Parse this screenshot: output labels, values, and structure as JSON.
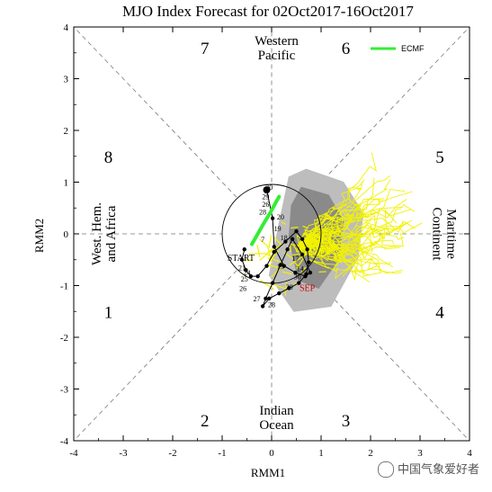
{
  "chart_data": {
    "type": "scatter",
    "title": "MJO Index Forecast for 02Oct2017-16Oct2017",
    "xlabel": "RMM1",
    "ylabel": "RMM2",
    "xlim": [
      -4,
      4
    ],
    "ylim": [
      -4,
      4
    ],
    "x_ticks": [
      -4,
      -3,
      -2,
      -1,
      0,
      1,
      2,
      3,
      4
    ],
    "y_ticks": [
      -4,
      -3,
      -2,
      -1,
      0,
      1,
      2,
      3,
      4
    ],
    "unit_circle_radius": 1,
    "phases": [
      {
        "number": "1",
        "x": -3.3,
        "y": -1.5
      },
      {
        "number": "2",
        "x": -1.35,
        "y": -3.6
      },
      {
        "number": "3",
        "x": 1.5,
        "y": -3.6
      },
      {
        "number": "4",
        "x": 3.4,
        "y": -1.5
      },
      {
        "number": "5",
        "x": 3.4,
        "y": 1.5
      },
      {
        "number": "6",
        "x": 1.5,
        "y": 3.6
      },
      {
        "number": "7",
        "x": -1.35,
        "y": 3.6
      },
      {
        "number": "8",
        "x": -3.3,
        "y": 1.5
      }
    ],
    "regions": [
      {
        "name": "western-pacific",
        "lines": [
          "Western",
          "Pacific"
        ],
        "x": 0.1,
        "y": 3.6,
        "rotate": 0
      },
      {
        "name": "indian-ocean",
        "lines": [
          "Indian",
          "Ocean"
        ],
        "x": 0.1,
        "y": -3.55,
        "rotate": 0
      },
      {
        "name": "west-hem-africa",
        "lines": [
          "West. Hem.",
          "and Africa"
        ],
        "x": -3.4,
        "y": 0,
        "rotate": -90
      },
      {
        "name": "maritime-continent",
        "lines": [
          "Maritime",
          "Continent"
        ],
        "x": 3.5,
        "y": 0,
        "rotate": 90
      }
    ],
    "legend": {
      "label": "ECMF",
      "color": "#33ee33",
      "position": "top-right"
    },
    "observed": {
      "x": [
        -0.55,
        -0.6,
        -0.52,
        -0.42,
        -0.28,
        -0.1,
        0.05,
        0.28,
        0.5,
        0.62,
        0.72,
        0.75,
        0.7,
        0.55,
        0.35,
        0.15,
        -0.05,
        -0.18,
        -0.12,
        0.02,
        0.18,
        0.32,
        0.42,
        0.62,
        0.78,
        0.68,
        0.48,
        0.25,
        0.05,
        0.02,
        -0.1
      ],
      "y": [
        -0.3,
        -0.5,
        -0.7,
        -0.82,
        -0.82,
        -0.62,
        -0.35,
        -0.15,
        0.05,
        -0.1,
        -0.3,
        -0.55,
        -0.78,
        -0.95,
        -1.05,
        -1.15,
        -1.25,
        -1.4,
        -1.25,
        -0.95,
        -0.6,
        -0.3,
        -0.1,
        -0.4,
        -0.75,
        -0.82,
        -0.75,
        -0.62,
        -0.25,
        0.3,
        0.85
      ],
      "day_labels": [
        {
          "text": "START",
          "x": -0.62,
          "y": -0.52,
          "color": "#000000"
        },
        {
          "text": "SEP",
          "x": 0.72,
          "y": -1.1,
          "color": "#cc0000"
        },
        {
          "text": "30",
          "x": -0.05,
          "y": 0.85,
          "color": "#000000"
        },
        {
          "text": "29",
          "x": -0.12,
          "y": 0.67,
          "color": "#000000"
        },
        {
          "text": "26",
          "x": -0.12,
          "y": 0.52,
          "color": "#000000"
        },
        {
          "text": "28",
          "x": -0.18,
          "y": 0.37,
          "color": "#000000"
        },
        {
          "text": "20",
          "x": 0.18,
          "y": 0.28,
          "color": "#000000"
        },
        {
          "text": "19",
          "x": 0.12,
          "y": 0.05,
          "color": "#000000"
        },
        {
          "text": "18",
          "x": 0.25,
          "y": -0.12,
          "color": "#000000"
        },
        {
          "text": "7",
          "x": -0.18,
          "y": -0.16,
          "color": "#000000"
        },
        {
          "text": "17",
          "x": 0.48,
          "y": -0.52,
          "color": "#000000"
        },
        {
          "text": "14",
          "x": 0.58,
          "y": -0.72,
          "color": "#000000"
        },
        {
          "text": "30",
          "x": 0.52,
          "y": -0.88,
          "color": "#000000"
        },
        {
          "text": "13",
          "x": 0.18,
          "y": -0.68,
          "color": "#000000"
        },
        {
          "text": "24",
          "x": -0.5,
          "y": -0.8,
          "color": "#000000"
        },
        {
          "text": "21",
          "x": -0.6,
          "y": -0.7,
          "color": "#000000"
        },
        {
          "text": "25",
          "x": -0.55,
          "y": -0.92,
          "color": "#000000"
        },
        {
          "text": "26",
          "x": -0.58,
          "y": -1.1,
          "color": "#000000"
        },
        {
          "text": "27",
          "x": -0.3,
          "y": -1.3,
          "color": "#000000"
        },
        {
          "text": "28",
          "x": 0.0,
          "y": -1.42,
          "color": "#000000"
        },
        {
          "text": "29",
          "x": 0.36,
          "y": -1.08,
          "color": "#000000"
        }
      ]
    },
    "ensemble_mean": {
      "color": "#33ee33",
      "x": [
        -0.4,
        -0.28,
        -0.15,
        -0.02,
        0.08,
        0.15
      ],
      "y": [
        -0.2,
        0.0,
        0.22,
        0.42,
        0.6,
        0.72
      ]
    },
    "ensemble_members": {
      "color": "#f2f200",
      "count": 50,
      "start_x": 0.55,
      "start_y": -0.2,
      "end_center_x": 1.6,
      "end_center_y": 0.2
    },
    "spread_shading": [
      {
        "name": "spread-outer",
        "color": "#bdbdbd",
        "points": [
          [
            0.35,
            1.1
          ],
          [
            0.7,
            1.25
          ],
          [
            1.45,
            1.0
          ],
          [
            1.85,
            0.4
          ],
          [
            1.75,
            -0.45
          ],
          [
            1.2,
            -1.4
          ],
          [
            0.45,
            -1.5
          ],
          [
            -0.05,
            -0.8
          ],
          [
            0.15,
            0.2
          ]
        ]
      },
      {
        "name": "spread-inner",
        "color": "#8a8a8a",
        "points": [
          [
            0.6,
            0.9
          ],
          [
            1.15,
            0.75
          ],
          [
            1.45,
            0.25
          ],
          [
            1.35,
            -0.5
          ],
          [
            0.95,
            -1.05
          ],
          [
            0.55,
            -0.9
          ],
          [
            0.35,
            -0.1
          ],
          [
            0.4,
            0.55
          ]
        ]
      }
    ]
  },
  "watermark": {
    "text": "中国气象爱好者"
  }
}
